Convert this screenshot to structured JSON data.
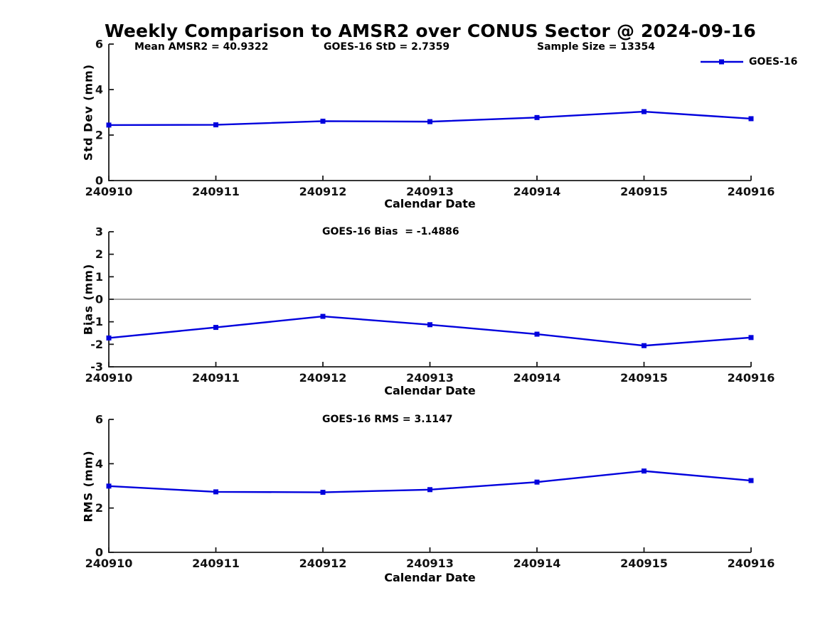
{
  "title": "Weekly Comparison to AMSR2 over CONUS Sector @ 2024-09-16",
  "colors": {
    "series": "#0000DD",
    "zero_line": "#808080",
    "axis": "#1a1a1a",
    "background": "#ffffff"
  },
  "legend": {
    "label": "GOES-16",
    "position": "top-right"
  },
  "chart_data": [
    {
      "type": "line",
      "name": "std-dev",
      "ylabel": "Std Dev (mm)",
      "xlabel": "Calendar Date",
      "categories": [
        "240910",
        "240911",
        "240912",
        "240913",
        "240914",
        "240915",
        "240916"
      ],
      "yticks": [
        0,
        2,
        4,
        6
      ],
      "ylim": [
        0,
        6
      ],
      "grid": false,
      "series": [
        {
          "name": "GOES-16",
          "color": "#0000DD",
          "marker": "square",
          "values": [
            2.44,
            2.45,
            2.61,
            2.59,
            2.77,
            3.03,
            2.72
          ]
        }
      ],
      "annotations": [
        {
          "text": "Mean AMSR2 = 40.9322"
        },
        {
          "text": "GOES-16 StD = 2.7359"
        },
        {
          "text": "Sample Size = 13354"
        }
      ]
    },
    {
      "type": "line",
      "name": "bias",
      "ylabel": "Bias (mm)",
      "xlabel": "Calendar Date",
      "categories": [
        "240910",
        "240911",
        "240912",
        "240913",
        "240914",
        "240915",
        "240916"
      ],
      "yticks": [
        -3,
        -2,
        -1,
        0,
        1,
        2,
        3
      ],
      "ylim": [
        -3,
        3
      ],
      "grid": false,
      "zero_line": true,
      "series": [
        {
          "name": "GOES-16",
          "color": "#0000DD",
          "marker": "square",
          "values": [
            -1.72,
            -1.25,
            -0.76,
            -1.13,
            -1.55,
            -2.06,
            -1.7
          ]
        }
      ],
      "annotations": [
        {
          "text": "GOES-16 Bias  = -1.4886"
        }
      ]
    },
    {
      "type": "line",
      "name": "rms",
      "ylabel": "RMS (mm)",
      "xlabel": "Calendar Date",
      "categories": [
        "240910",
        "240911",
        "240912",
        "240913",
        "240914",
        "240915",
        "240916"
      ],
      "yticks": [
        0,
        2,
        4,
        6
      ],
      "ylim": [
        0,
        6
      ],
      "grid": false,
      "series": [
        {
          "name": "GOES-16",
          "color": "#0000DD",
          "marker": "square",
          "values": [
            2.99,
            2.73,
            2.71,
            2.83,
            3.17,
            3.67,
            3.24
          ]
        }
      ],
      "annotations": [
        {
          "text": "GOES-16 RMS = 3.1147"
        }
      ]
    }
  ]
}
